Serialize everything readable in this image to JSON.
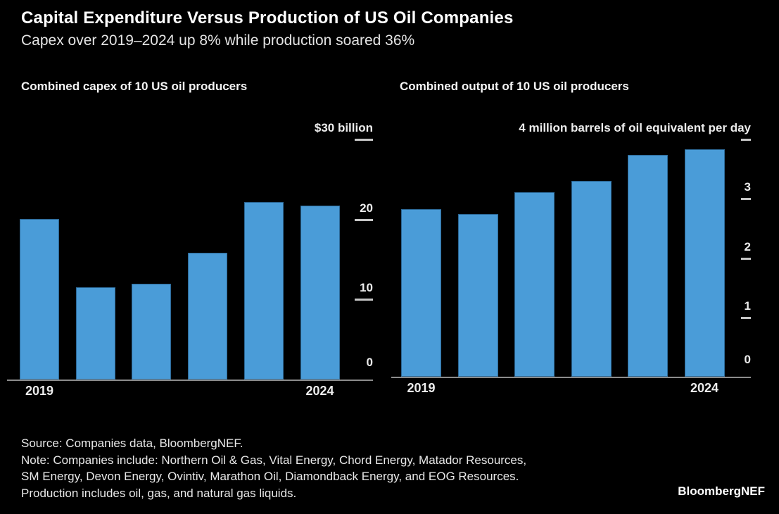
{
  "header": {
    "title": "Capital Expenditure Versus Production of US Oil Companies",
    "subtitle": "Capex over 2019–2024 up 8% while production soared 36%"
  },
  "chart_data": [
    {
      "type": "bar",
      "title": "Combined capex of 10 US oil producers",
      "categories": [
        "2019",
        "2020",
        "2021",
        "2022",
        "2023",
        "2024"
      ],
      "values": [
        20.1,
        11.5,
        12.0,
        15.8,
        22.2,
        21.7
      ],
      "unit_label": "$30 billion",
      "ylabel": "US dollars, billions",
      "ylim": [
        0,
        30
      ],
      "yticks": [
        {
          "value": 0,
          "label": "0",
          "dash": false
        },
        {
          "value": 10,
          "label": "10",
          "dash": true
        },
        {
          "value": 20,
          "label": "20",
          "dash": true
        },
        {
          "value": 30,
          "label": "$30 billion",
          "dash": true,
          "is_unit": true
        }
      ],
      "x_labels_shown": [
        "2019",
        "2024"
      ],
      "grid": false,
      "legend": "none"
    },
    {
      "type": "bar",
      "title": "Combined output of 10 US oil producers",
      "categories": [
        "2019",
        "2020",
        "2021",
        "2022",
        "2023",
        "2024"
      ],
      "values": [
        2.82,
        2.74,
        3.11,
        3.3,
        3.74,
        3.83
      ],
      "unit_label": "4 million barrels of oil equivalent per day",
      "ylabel": "Million barrels of oil equivalent per day",
      "ylim": [
        0,
        4
      ],
      "yticks": [
        {
          "value": 0,
          "label": "0",
          "dash": false
        },
        {
          "value": 1,
          "label": "1",
          "dash": true
        },
        {
          "value": 2,
          "label": "2",
          "dash": true
        },
        {
          "value": 3,
          "label": "3",
          "dash": true
        },
        {
          "value": 4,
          "label": "4 million barrels of oil equivalent per day",
          "dash": true,
          "is_unit": true
        }
      ],
      "x_labels_shown": [
        "2019",
        "2024"
      ],
      "grid": false,
      "legend": "none"
    }
  ],
  "footer": {
    "lines": [
      "Source: Companies data, BloombergNEF.",
      "Note: Companies include: Northern Oil & Gas, Vital Energy, Chord Energy, Matador Resources,",
      "SM Energy, Devon Energy, Ovintiv, Marathon Oil, Diamondback Energy, and EOG Resources.",
      "Production includes oil, gas, and natural gas liquids."
    ],
    "brand": "BloombergNEF"
  },
  "colors": {
    "background": "#000000",
    "bar": "#4A9CD8",
    "axis_line": "#8C8C8C",
    "tick_dash": "#C6C6C6",
    "title_text": "#FFFFFF",
    "subtitle_text": "#E4E4E4",
    "label_text": "#ECECEC"
  }
}
